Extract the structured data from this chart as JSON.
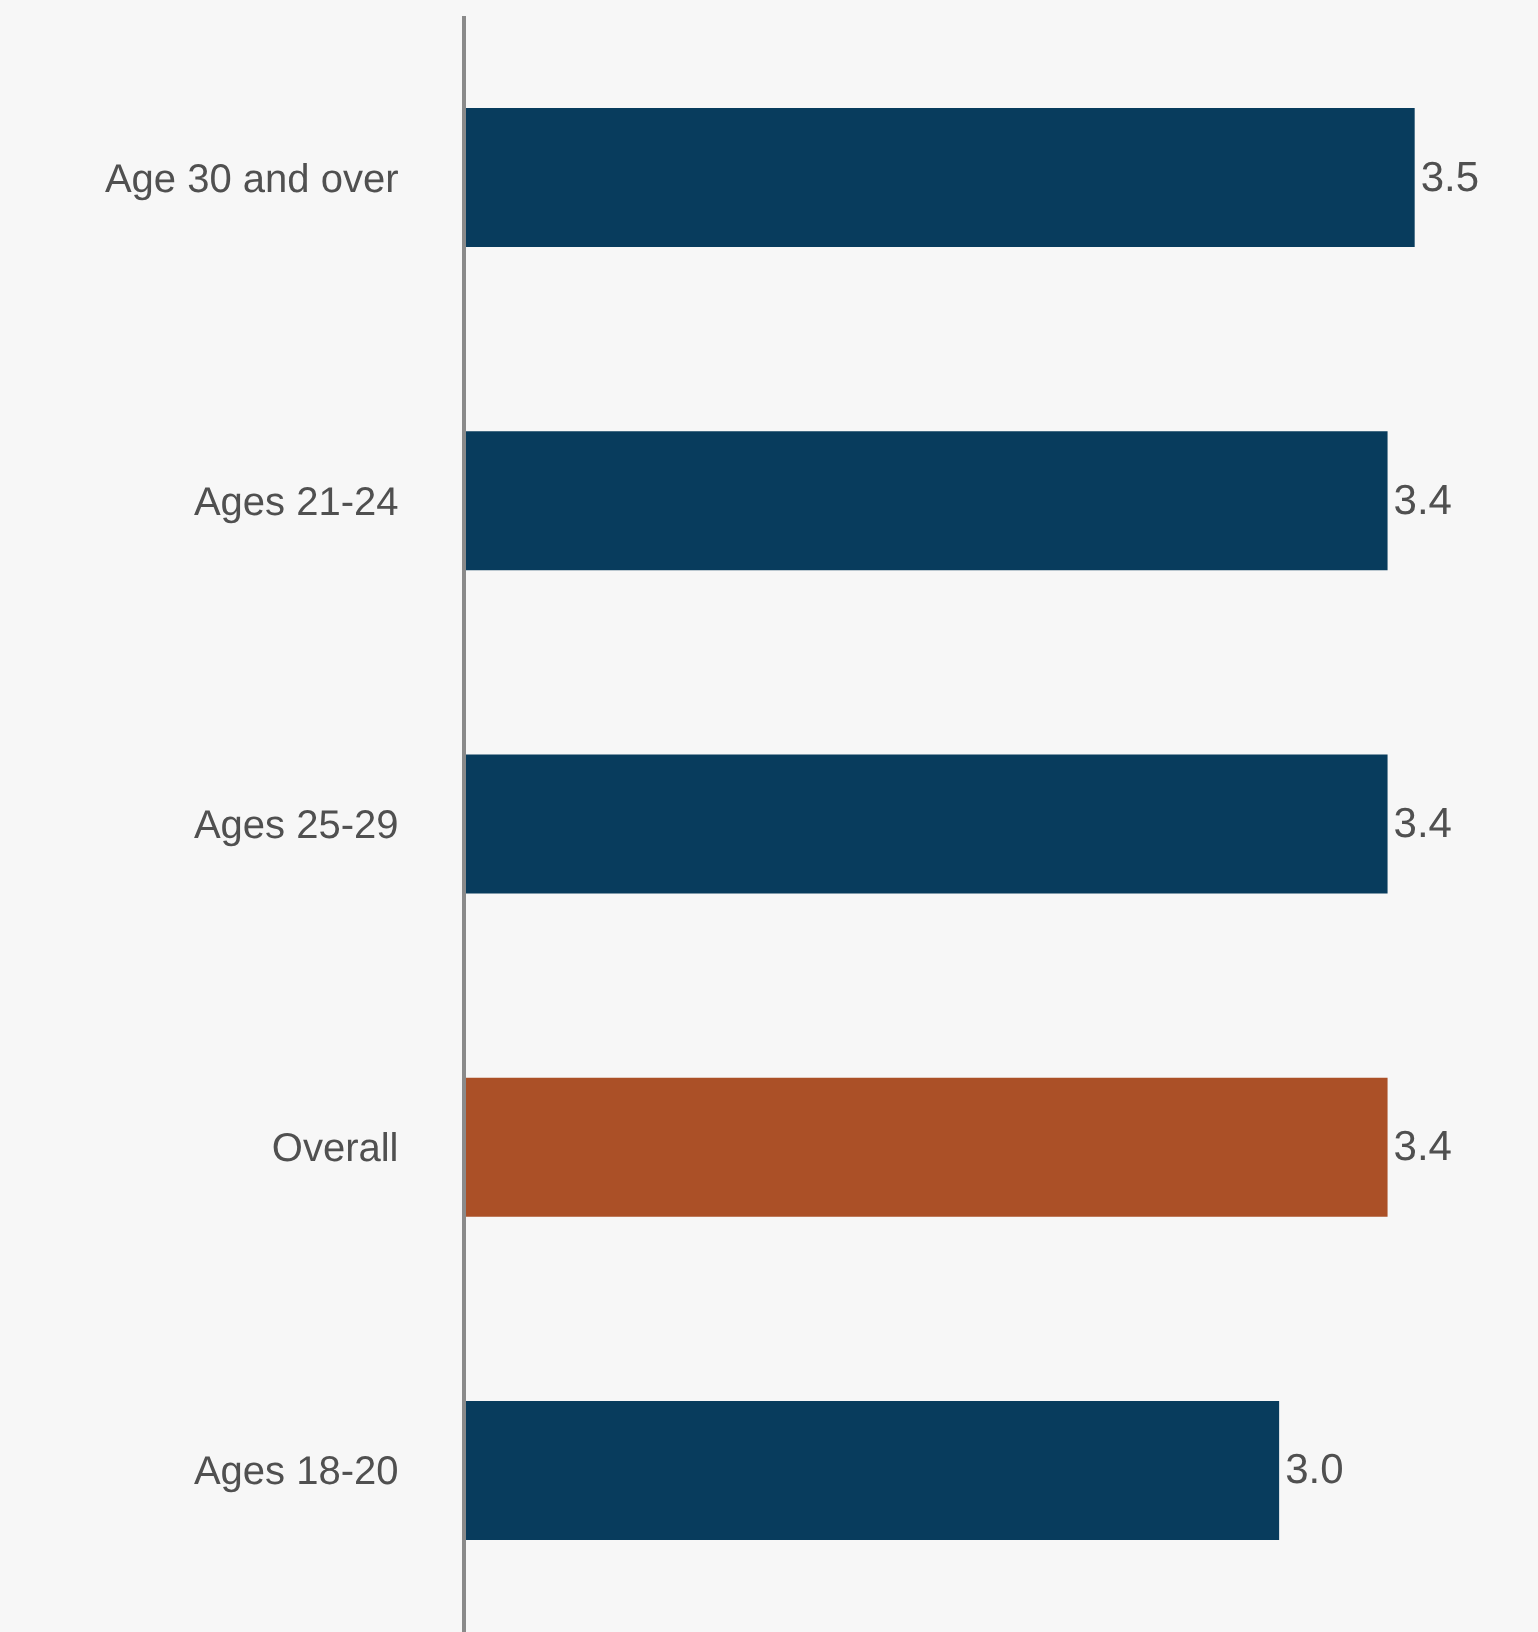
{
  "chart_data": {
    "type": "bar",
    "orientation": "horizontal",
    "categories": [
      "Age 30 and over",
      "Ages 21-24",
      "Ages 25-29",
      "Overall",
      "Ages 18-20"
    ],
    "values": [
      3.5,
      3.4,
      3.4,
      3.4,
      3.0
    ],
    "colors": [
      "#083c5d",
      "#083c5d",
      "#083c5d",
      "#ab5027",
      "#083c5d"
    ],
    "value_labels": [
      "3.5",
      "3.4",
      "3.4",
      "3.4",
      "3.0"
    ],
    "grid": false,
    "legend": false
  }
}
